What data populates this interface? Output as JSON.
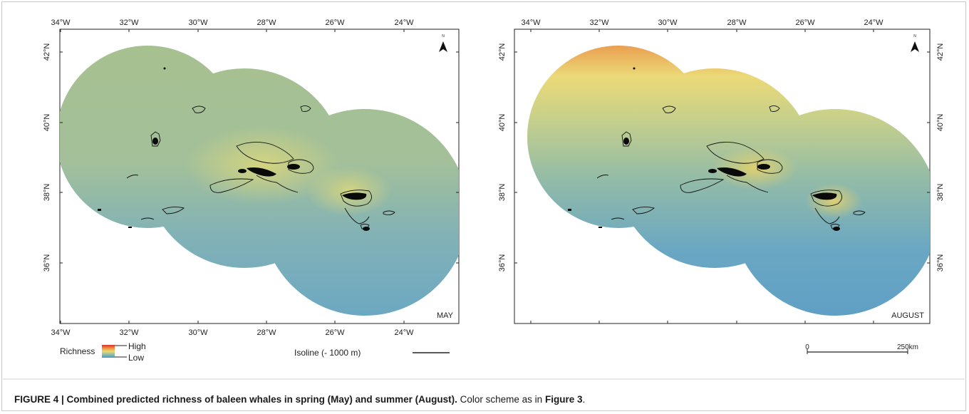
{
  "panels": [
    {
      "label": "MAY",
      "lon_ticks": [
        "34°W",
        "32°W",
        "30°W",
        "28°W",
        "26°W",
        "24°W"
      ],
      "lat_ticks": [
        "42°N",
        "40°N",
        "38°N",
        "36°N"
      ],
      "north_label": "N"
    },
    {
      "label": "AUGUST",
      "lon_ticks": [
        "34°W",
        "32°W",
        "30°W",
        "28°W",
        "26°W",
        "24°W"
      ],
      "lat_ticks": [
        "42°N",
        "40°N",
        "38°N",
        "36°N"
      ],
      "north_label": "N"
    }
  ],
  "legend": {
    "richness_label": "Richness",
    "high_label": "High",
    "low_label": "Low",
    "isoline_label": "Isoline (- 1000 m)",
    "colors": {
      "high": "#e0482c",
      "mid": "#ecd86e",
      "low": "#5d9fc4"
    }
  },
  "scale_bar": {
    "start": "0",
    "end": "250km"
  },
  "caption": {
    "title": "FIGURE 4 | Combined predicted richness of baleen whales in spring (May) and summer (August).",
    "text_before": " Color scheme as in ",
    "figure_ref": "Figure 3",
    "text_after": "."
  }
}
